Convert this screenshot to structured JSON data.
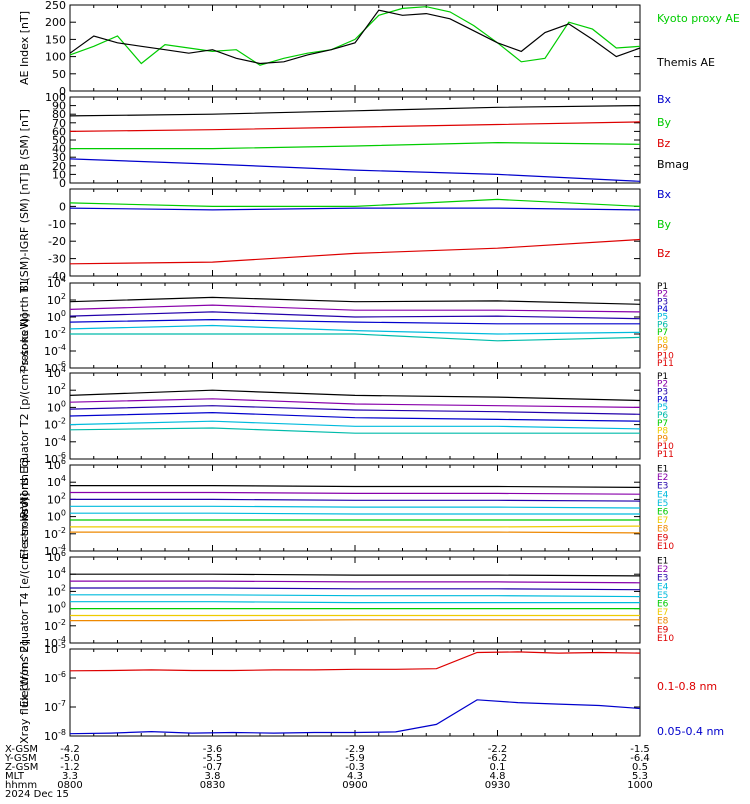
{
  "time_axis": {
    "ticks": [
      {
        "label": "0800",
        "x_gsm": "-4.2",
        "y_gsm": "-5.0",
        "z_gsm": "-1.2",
        "mlt": "3.3"
      },
      {
        "label": "0830",
        "x_gsm": "-3.6",
        "y_gsm": "-5.5",
        "z_gsm": "-0.7",
        "mlt": "3.8"
      },
      {
        "label": "0900",
        "x_gsm": "-2.9",
        "y_gsm": "-5.9",
        "z_gsm": "-0.3",
        "mlt": "4.3"
      },
      {
        "label": "0930",
        "x_gsm": "-2.2",
        "y_gsm": "-6.2",
        "z_gsm": "0.1",
        "mlt": "4.8"
      },
      {
        "label": "1000",
        "x_gsm": "-1.5",
        "y_gsm": "-6.4",
        "z_gsm": "0.5",
        "mlt": "5.3"
      }
    ],
    "row_labels": [
      "X-GSM",
      "Y-GSM",
      "Z-GSM",
      "MLT",
      "hhmm"
    ],
    "date": "2024 Dec 15"
  },
  "colors": {
    "black": "#000000",
    "red": "#dd0000",
    "green": "#00cc00",
    "blue": "#0000cc",
    "purple": "#8800aa",
    "darkblue": "#2200aa",
    "cyan": "#00bbdd",
    "teal": "#00bbaa",
    "yellow": "#eecc00",
    "orange": "#ee8800"
  },
  "chart_data": [
    {
      "type": "line",
      "ylabel": "AE Index [nT]",
      "ylim": [
        0,
        250
      ],
      "yticks": [
        "0",
        "50",
        "100",
        "150",
        "200",
        "250"
      ],
      "legend": [
        {
          "label": "Kyoto proxy AE",
          "color": "#00cc00"
        },
        {
          "label": "Themis AE",
          "color": "#000000"
        }
      ],
      "x": [
        "0800",
        "0805",
        "0810",
        "0815",
        "0820",
        "0825",
        "0830",
        "0835",
        "0840",
        "0845",
        "0850",
        "0855",
        "0900",
        "0905",
        "0910",
        "0915",
        "0920",
        "0925",
        "0930",
        "0935",
        "0940",
        "0945",
        "0950",
        "0955",
        "1000"
      ],
      "series": [
        {
          "name": "Kyoto proxy AE",
          "color": "#00cc00",
          "values": [
            105,
            130,
            160,
            80,
            135,
            125,
            115,
            120,
            75,
            95,
            110,
            120,
            150,
            220,
            240,
            245,
            230,
            190,
            140,
            85,
            95,
            200,
            180,
            125,
            130
          ]
        },
        {
          "name": "Themis AE",
          "color": "#000000",
          "values": [
            110,
            160,
            140,
            130,
            120,
            110,
            120,
            95,
            80,
            85,
            105,
            120,
            140,
            235,
            220,
            225,
            210,
            175,
            140,
            115,
            170,
            195,
            150,
            100,
            125
          ]
        }
      ]
    },
    {
      "type": "line",
      "ylabel": "B (SM) [nT]",
      "ylim": [
        0,
        100
      ],
      "yticks": [
        "0",
        "10",
        "20",
        "30",
        "40",
        "50",
        "60",
        "70",
        "80",
        "90",
        "100"
      ],
      "legend": [
        {
          "label": "Bx",
          "color": "#0000cc"
        },
        {
          "label": "By",
          "color": "#00cc00"
        },
        {
          "label": "Bz",
          "color": "#dd0000"
        },
        {
          "label": "Bmag",
          "color": "#000000"
        }
      ],
      "x": [
        "0800",
        "0830",
        "0900",
        "0930",
        "1000"
      ],
      "series": [
        {
          "name": "Bmag",
          "color": "#000000",
          "values": [
            78,
            80,
            84,
            88,
            90
          ]
        },
        {
          "name": "Bz",
          "color": "#dd0000",
          "values": [
            60,
            62,
            65,
            68,
            71
          ]
        },
        {
          "name": "By",
          "color": "#00cc00",
          "values": [
            40,
            40,
            43,
            47,
            45
          ]
        },
        {
          "name": "Bx",
          "color": "#0000cc",
          "values": [
            28,
            22,
            15,
            10,
            2
          ]
        }
      ]
    },
    {
      "type": "line",
      "ylabel": "B (SM)-IGRF (SM) [nT]",
      "ylim": [
        -40,
        10
      ],
      "yticks": [
        "-40",
        "-30",
        "-20",
        "-10",
        "0"
      ],
      "legend": [
        {
          "label": "Bx",
          "color": "#0000cc"
        },
        {
          "label": "By",
          "color": "#00cc00"
        },
        {
          "label": "Bz",
          "color": "#dd0000"
        }
      ],
      "x": [
        "0800",
        "0830",
        "0900",
        "0930",
        "1000"
      ],
      "series": [
        {
          "name": "By",
          "color": "#00cc00",
          "values": [
            2,
            0,
            0,
            4,
            0
          ]
        },
        {
          "name": "Bx",
          "color": "#0000cc",
          "values": [
            -1,
            -2,
            -1,
            -1,
            -2
          ]
        },
        {
          "name": "Bz",
          "color": "#dd0000",
          "values": [
            -33,
            -32,
            -27,
            -24,
            -19
          ]
        }
      ]
    },
    {
      "type": "line",
      "ylabel": "Protons North T1",
      "ylim": [
        -6,
        4
      ],
      "yscale": "log",
      "yticks": [
        "10^-6",
        "10^-4",
        "10^-2",
        "10^0",
        "10^2",
        "10^4"
      ],
      "legend": [
        {
          "label": "P1",
          "color": "#000000"
        },
        {
          "label": "P2",
          "color": "#8800aa"
        },
        {
          "label": "P3",
          "color": "#2200aa"
        },
        {
          "label": "P4",
          "color": "#0000cc"
        },
        {
          "label": "P5",
          "color": "#00bbdd"
        },
        {
          "label": "P6",
          "color": "#00bbaa"
        },
        {
          "label": "P7",
          "color": "#00cc00"
        },
        {
          "label": "P8",
          "color": "#eecc00"
        },
        {
          "label": "P9",
          "color": "#ee8800"
        },
        {
          "label": "P10",
          "color": "#dd0000"
        },
        {
          "label": "P11",
          "color": "#dd0000"
        }
      ],
      "series": [
        {
          "name": "P1",
          "color": "#000000",
          "values": [
            1.8,
            2.3,
            1.8,
            1.9,
            1.5
          ]
        },
        {
          "name": "P2",
          "color": "#8800aa",
          "values": [
            0.9,
            1.4,
            0.8,
            0.8,
            0.6
          ]
        },
        {
          "name": "P3",
          "color": "#2200aa",
          "values": [
            0.1,
            0.6,
            0.0,
            0.1,
            -0.2
          ]
        },
        {
          "name": "P4",
          "color": "#0000cc",
          "values": [
            -0.6,
            -0.3,
            -0.6,
            -0.8,
            -0.8
          ]
        },
        {
          "name": "P5",
          "color": "#00bbdd",
          "values": [
            -1.4,
            -1.0,
            -1.6,
            -2.0,
            -1.8
          ]
        },
        {
          "name": "P6",
          "color": "#00bbaa",
          "values": [
            -2.0,
            -2.0,
            -2.0,
            -2.8,
            -2.4
          ]
        }
      ]
    },
    {
      "type": "line",
      "ylabel": "Protons Equator T2 [p/(cm²-s-sr-keV)]",
      "ylim": [
        -6,
        4
      ],
      "yscale": "log",
      "yticks": [
        "10^-6",
        "10^-4",
        "10^-2",
        "10^0",
        "10^2",
        "10^4"
      ],
      "legend": [
        {
          "label": "P1",
          "color": "#000000"
        },
        {
          "label": "P2",
          "color": "#8800aa"
        },
        {
          "label": "P3",
          "color": "#2200aa"
        },
        {
          "label": "P4",
          "color": "#0000cc"
        },
        {
          "label": "P5",
          "color": "#00bbdd"
        },
        {
          "label": "P6",
          "color": "#00bbaa"
        },
        {
          "label": "P7",
          "color": "#00cc00"
        },
        {
          "label": "P8",
          "color": "#eecc00"
        },
        {
          "label": "P9",
          "color": "#ee8800"
        },
        {
          "label": "P10",
          "color": "#dd0000"
        },
        {
          "label": "P11",
          "color": "#dd0000"
        }
      ],
      "series": [
        {
          "name": "P1",
          "color": "#000000",
          "values": [
            1.4,
            2.0,
            1.4,
            1.2,
            0.8
          ]
        },
        {
          "name": "P2",
          "color": "#8800aa",
          "values": [
            0.6,
            1.0,
            0.4,
            0.2,
            0.0
          ]
        },
        {
          "name": "P3",
          "color": "#2200aa",
          "values": [
            -0.2,
            0.2,
            -0.3,
            -0.5,
            -0.8
          ]
        },
        {
          "name": "P4",
          "color": "#0000cc",
          "values": [
            -1.0,
            -0.6,
            -1.2,
            -1.4,
            -1.6
          ]
        },
        {
          "name": "P5",
          "color": "#00bbdd",
          "values": [
            -2.0,
            -1.6,
            -2.2,
            -2.2,
            -2.5
          ]
        },
        {
          "name": "P6",
          "color": "#00bbaa",
          "values": [
            -2.6,
            -2.4,
            -3.0,
            -3.0,
            -3.0
          ]
        }
      ]
    },
    {
      "type": "line",
      "ylabel": "Electrons North T3",
      "ylim": [
        -4,
        6
      ],
      "yscale": "log",
      "yticks": [
        "10^-4",
        "10^-2",
        "10^0",
        "10^2",
        "10^4",
        "10^6"
      ],
      "legend": [
        {
          "label": "E1",
          "color": "#000000"
        },
        {
          "label": "E2",
          "color": "#8800aa"
        },
        {
          "label": "E3",
          "color": "#2200aa"
        },
        {
          "label": "E4",
          "color": "#00bbdd"
        },
        {
          "label": "E5",
          "color": "#00bbdd"
        },
        {
          "label": "E6",
          "color": "#00cc00"
        },
        {
          "label": "E7",
          "color": "#eecc00"
        },
        {
          "label": "E8",
          "color": "#ee8800"
        },
        {
          "label": "E9",
          "color": "#dd0000"
        },
        {
          "label": "E10",
          "color": "#dd0000"
        }
      ],
      "series": [
        {
          "name": "E1",
          "color": "#000000",
          "values": [
            3.6,
            3.6,
            3.5,
            3.5,
            3.4
          ]
        },
        {
          "name": "E2",
          "color": "#8800aa",
          "values": [
            2.8,
            2.8,
            2.7,
            2.7,
            2.6
          ]
        },
        {
          "name": "E3",
          "color": "#2200aa",
          "values": [
            2.0,
            2.0,
            1.9,
            1.9,
            1.8
          ]
        },
        {
          "name": "E4",
          "color": "#00bbdd",
          "values": [
            1.2,
            1.2,
            1.1,
            1.1,
            1.0
          ]
        },
        {
          "name": "E5",
          "color": "#00bbdd",
          "values": [
            0.4,
            0.4,
            0.3,
            0.3,
            0.3
          ]
        },
        {
          "name": "E6",
          "color": "#00cc00",
          "values": [
            -0.4,
            -0.4,
            -0.4,
            -0.4,
            -0.4
          ]
        },
        {
          "name": "E7",
          "color": "#eecc00",
          "values": [
            -1.2,
            -1.2,
            -1.2,
            -1.2,
            -1.1
          ]
        },
        {
          "name": "E8",
          "color": "#ee8800",
          "values": [
            -1.8,
            -1.8,
            -1.8,
            -1.8,
            -1.9
          ]
        }
      ]
    },
    {
      "type": "line",
      "ylabel": "Electrons Equator T4 [e/(cm²-s-sr-keV)]",
      "ylim": [
        -4,
        6
      ],
      "yscale": "log",
      "yticks": [
        "10^-4",
        "10^-2",
        "10^0",
        "10^2",
        "10^4",
        "10^6"
      ],
      "legend": [
        {
          "label": "E1",
          "color": "#000000"
        },
        {
          "label": "E2",
          "color": "#8800aa"
        },
        {
          "label": "E3",
          "color": "#2200aa"
        },
        {
          "label": "E4",
          "color": "#00bbdd"
        },
        {
          "label": "E5",
          "color": "#00bbdd"
        },
        {
          "label": "E6",
          "color": "#00cc00"
        },
        {
          "label": "E7",
          "color": "#eecc00"
        },
        {
          "label": "E8",
          "color": "#ee8800"
        },
        {
          "label": "E9",
          "color": "#dd0000"
        },
        {
          "label": "E10",
          "color": "#dd0000"
        }
      ],
      "series": [
        {
          "name": "E1",
          "color": "#000000",
          "values": [
            4.0,
            4.0,
            3.9,
            3.9,
            3.8
          ]
        },
        {
          "name": "E2",
          "color": "#8800aa",
          "values": [
            3.2,
            3.2,
            3.1,
            3.1,
            3.0
          ]
        },
        {
          "name": "E3",
          "color": "#2200aa",
          "values": [
            2.4,
            2.4,
            2.3,
            2.3,
            2.2
          ]
        },
        {
          "name": "E4",
          "color": "#00bbdd",
          "values": [
            1.6,
            1.6,
            1.5,
            1.5,
            1.4
          ]
        },
        {
          "name": "E5",
          "color": "#00bbdd",
          "values": [
            0.8,
            0.8,
            0.7,
            0.7,
            0.7
          ]
        },
        {
          "name": "E6",
          "color": "#00cc00",
          "values": [
            0.0,
            0.0,
            0.0,
            0.0,
            0.0
          ]
        },
        {
          "name": "E7",
          "color": "#eecc00",
          "values": [
            -0.8,
            -0.8,
            -0.8,
            -0.8,
            -0.8
          ]
        },
        {
          "name": "E8",
          "color": "#ee8800",
          "values": [
            -1.4,
            -1.4,
            -1.3,
            -1.3,
            -1.3
          ]
        }
      ]
    },
    {
      "type": "line",
      "ylabel": "Xray flux [W/m^2]",
      "ylim": [
        -8,
        -5
      ],
      "yscale": "log",
      "yticks": [
        "10^-8",
        "10^-7",
        "10^-6",
        "10^-5"
      ],
      "legend": [
        {
          "label": "0.1-0.8 nm",
          "color": "#dd0000"
        },
        {
          "label": "0.05-0.4 nm",
          "color": "#0000cc"
        }
      ],
      "x": [
        "0800",
        "0810",
        "0820",
        "0830",
        "0840",
        "0850",
        "0900",
        "0910",
        "0920",
        "0930",
        "0935",
        "0940",
        "0945",
        "0950",
        "1000"
      ],
      "series": [
        {
          "name": "0.1-0.8 nm",
          "color": "#dd0000",
          "values": [
            -5.75,
            -5.74,
            -5.72,
            -5.74,
            -5.74,
            -5.72,
            -5.72,
            -5.7,
            -5.7,
            -5.68,
            -5.12,
            -5.1,
            -5.14,
            -5.12,
            -5.14
          ]
        },
        {
          "name": "0.05-0.4 nm",
          "color": "#0000cc",
          "values": [
            -7.92,
            -7.9,
            -7.85,
            -7.9,
            -7.88,
            -7.9,
            -7.88,
            -7.88,
            -7.86,
            -7.6,
            -6.75,
            -6.85,
            -6.9,
            -6.95,
            -7.05
          ]
        }
      ]
    }
  ]
}
